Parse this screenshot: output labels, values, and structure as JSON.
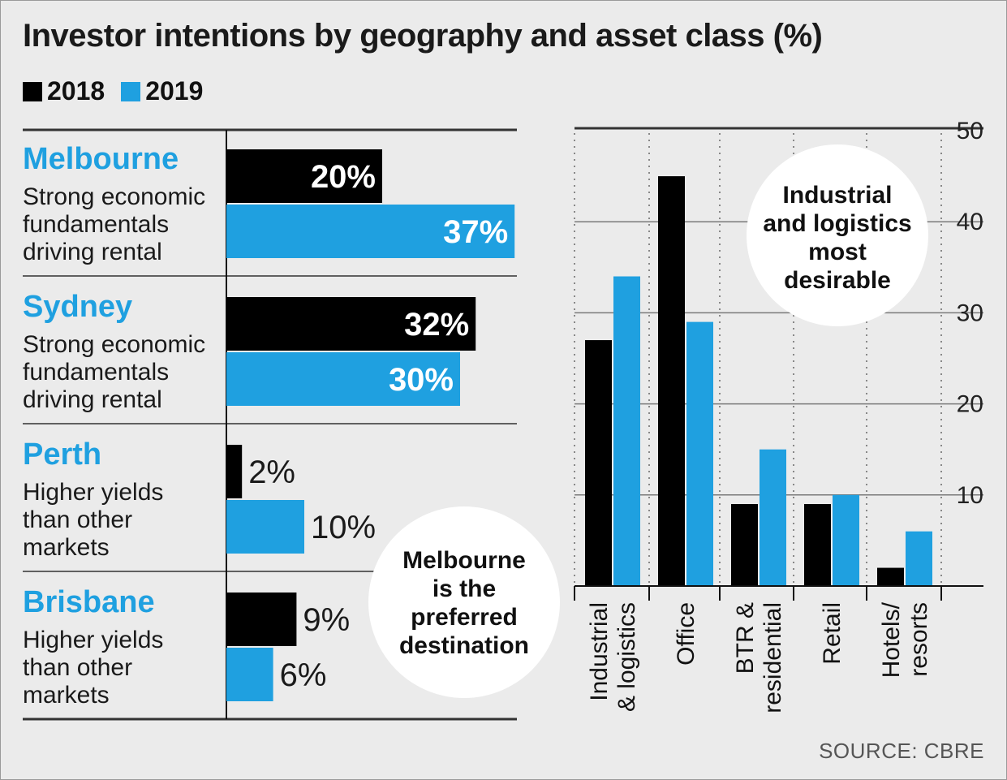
{
  "title": "Investor intentions by geography and asset class (%)",
  "legend": [
    {
      "label": "2018",
      "color": "#000000"
    },
    {
      "label": "2019",
      "color": "#1fa0e0"
    }
  ],
  "chart_data": [
    {
      "type": "bar",
      "orientation": "horizontal",
      "categories": [
        "Melbourne",
        "Sydney",
        "Perth",
        "Brisbane"
      ],
      "descriptions": [
        [
          "Strong economic",
          "fundamentals",
          "driving rental"
        ],
        [
          "Strong economic",
          "fundamentals",
          "driving rental"
        ],
        [
          "Higher yields",
          "than other",
          "markets"
        ],
        [
          "Higher yields",
          "than other",
          "markets"
        ]
      ],
      "series": [
        {
          "name": "2018",
          "values": [
            20,
            32,
            2,
            9
          ],
          "labels": [
            "20%",
            "32%",
            "2%",
            "9%"
          ]
        },
        {
          "name": "2019",
          "values": [
            37,
            30,
            10,
            6
          ],
          "labels": [
            "37%",
            "30%",
            "10%",
            "6%"
          ]
        }
      ],
      "annotation": [
        "Melbourne",
        "is the",
        "preferred",
        "destination"
      ]
    },
    {
      "type": "bar",
      "categories": [
        [
          "Industrial",
          "& logistics"
        ],
        [
          "Office"
        ],
        [
          "BTR &",
          "residential"
        ],
        [
          "Retail"
        ],
        [
          "Hotels/",
          "resorts"
        ]
      ],
      "series": [
        {
          "name": "2018",
          "values": [
            27,
            45,
            9,
            9,
            2
          ]
        },
        {
          "name": "2019",
          "values": [
            34,
            29,
            15,
            10,
            6
          ]
        }
      ],
      "ylim": [
        0,
        50
      ],
      "yticks": [
        "10",
        "20",
        "30",
        "40",
        "50"
      ],
      "annotation": [
        "Industrial",
        "and logistics",
        "most",
        "desirable"
      ]
    }
  ],
  "source": "SOURCE: CBRE"
}
